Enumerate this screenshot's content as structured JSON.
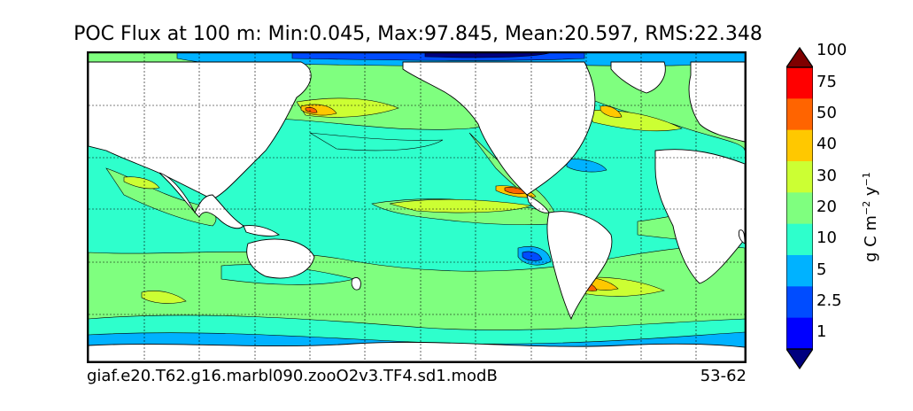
{
  "title": "POC Flux at 100 m: Min:0.045, Max:97.845, Mean:20.597, RMS:22.348",
  "footer": {
    "case_name": "giaf.e20.T62.g16.marbl090.zooO2v3.TF4.sd1.modB",
    "years": "53-62"
  },
  "colorbar": {
    "label_main": "g C m",
    "label_exp1": "−2",
    "label_mid": " y",
    "label_exp2": "−1",
    "ticks": [
      "1",
      "2.5",
      "5",
      "10",
      "20",
      "30",
      "40",
      "50",
      "75",
      "100"
    ],
    "colors": [
      "#00007f",
      "#0000ff",
      "#004cff",
      "#00b2ff",
      "#2effcc",
      "#7fff7f",
      "#ccff33",
      "#ffc800",
      "#ff6400",
      "#ff0000",
      "#7f0000"
    ]
  },
  "map": {
    "land_color": "#ffffff",
    "background_level_color": "#2effcc",
    "gridlines": true
  }
}
